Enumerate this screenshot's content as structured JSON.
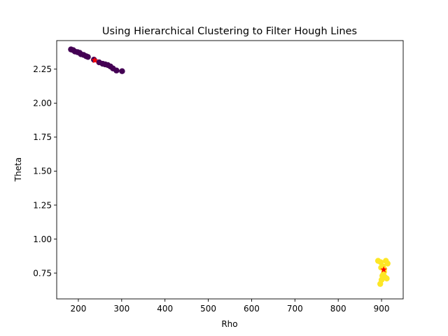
{
  "chart_data": {
    "type": "scatter",
    "title": "Using Hierarchical Clustering to Filter Hough Lines",
    "xlabel": "Rho",
    "ylabel": "Theta",
    "xlim": [
      150,
      950
    ],
    "ylim": [
      0.56,
      2.46
    ],
    "xticks": [
      200,
      300,
      400,
      500,
      600,
      700,
      800,
      900
    ],
    "yticks": [
      0.75,
      1.0,
      1.25,
      1.5,
      1.75,
      2.0,
      2.25
    ],
    "ytick_labels": [
      "0.75",
      "1.00",
      "1.25",
      "1.50",
      "1.75",
      "2.00",
      "2.25"
    ],
    "grid": false,
    "colors": {
      "cluster_1": "#440154",
      "cluster_2": "#fde725",
      "centroid": "#ff0000"
    },
    "series": [
      {
        "cluster": 1,
        "color_key": "cluster_1",
        "points": [
          [
            183,
            2.395
          ],
          [
            188,
            2.39
          ],
          [
            192,
            2.38
          ],
          [
            198,
            2.375
          ],
          [
            203,
            2.37
          ],
          [
            206,
            2.36
          ],
          [
            212,
            2.355
          ],
          [
            218,
            2.345
          ],
          [
            222,
            2.34
          ],
          [
            236,
            2.32
          ],
          [
            248,
            2.3
          ],
          [
            256,
            2.29
          ],
          [
            262,
            2.285
          ],
          [
            268,
            2.28
          ],
          [
            274,
            2.27
          ],
          [
            280,
            2.255
          ],
          [
            288,
            2.24
          ],
          [
            301,
            2.235
          ]
        ]
      },
      {
        "cluster": 2,
        "color_key": "cluster_2",
        "points": [
          [
            892,
            0.84
          ],
          [
            898,
            0.83
          ],
          [
            903,
            0.8
          ],
          [
            906,
            0.78
          ],
          [
            910,
            0.84
          ],
          [
            914,
            0.82
          ],
          [
            899,
            0.79
          ],
          [
            904,
            0.74
          ],
          [
            908,
            0.72
          ],
          [
            912,
            0.71
          ],
          [
            900,
            0.7
          ],
          [
            897,
            0.67
          ],
          [
            906,
            0.76
          ],
          [
            902,
            0.73
          ]
        ]
      }
    ],
    "centroids": [
      [
        238,
        2.315
      ],
      [
        905,
        0.775
      ]
    ]
  }
}
